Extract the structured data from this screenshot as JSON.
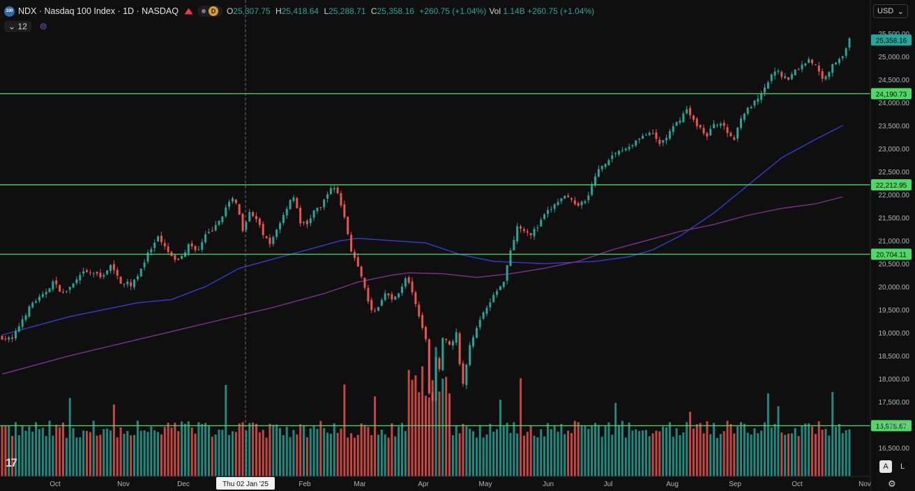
{
  "header": {
    "symbol_logo": "100",
    "title": "NDX · Nasdaq 100 Index · 1D · NASDAQ",
    "d_badge": "D",
    "ohlc": {
      "o_label": "O",
      "o": "25,307.75",
      "h_label": "H",
      "h": "25,418.64",
      "l_label": "L",
      "l": "25,288.71",
      "c_label": "C",
      "c": "25,358.16",
      "change": "+260.75 (+1.04%)"
    },
    "vol": {
      "label": "Vol",
      "value": "1.14B",
      "change": "+260.75 (+1.04%)"
    },
    "indicators_count": "12",
    "currency": "USD"
  },
  "colors": {
    "up": "#26a69a",
    "down": "#ef5350",
    "level": "#4cd964",
    "ma_fast": "#2f3cc4",
    "ma_slow": "#7a2d8e",
    "volume_up": "#26a69a",
    "volume_down": "#ef5350"
  },
  "crosshair": {
    "date": "Thu 02 Jan '25"
  },
  "controls": {
    "auto": "A",
    "log": "L"
  },
  "chart_data": {
    "type": "candlestick",
    "x_labels": [
      "Oct",
      "Nov",
      "Dec",
      "Jan",
      "Feb",
      "Mar",
      "Apr",
      "May",
      "Jun",
      "Jul",
      "Aug",
      "Sep",
      "Oct",
      "Nov"
    ],
    "y_ticks": [
      25500,
      25000,
      24500,
      24000,
      23500,
      23000,
      22500,
      22000,
      21500,
      21000,
      20500,
      20000,
      19500,
      19000,
      18500,
      18000,
      17500,
      17000,
      16500
    ],
    "ylim": [
      16500,
      25500
    ],
    "last_price": "25,358.16",
    "levels": [
      {
        "value": 24190.73,
        "label": "24,190.73"
      },
      {
        "value": 22212.95,
        "label": "22,212.95"
      },
      {
        "value": 20704.11,
        "label": "20,704.11"
      },
      {
        "value": 16978.67,
        "label": "16,978.67"
      }
    ],
    "close_path": [
      [
        0,
        18900
      ],
      [
        3,
        18850
      ],
      [
        6,
        19300
      ],
      [
        9,
        19650
      ],
      [
        12,
        19800
      ],
      [
        15,
        20100
      ],
      [
        18,
        19850
      ],
      [
        21,
        20050
      ],
      [
        24,
        20300
      ],
      [
        27,
        20300
      ],
      [
        29,
        20200
      ],
      [
        32,
        20450
      ],
      [
        35,
        20100
      ],
      [
        38,
        20050
      ],
      [
        40,
        20250
      ],
      [
        43,
        20700
      ],
      [
        46,
        21050
      ],
      [
        48,
        20850
      ],
      [
        51,
        20550
      ],
      [
        53,
        20650
      ],
      [
        55,
        20900
      ],
      [
        58,
        20800
      ],
      [
        60,
        21100
      ],
      [
        63,
        21300
      ],
      [
        66,
        21700
      ],
      [
        68,
        21900
      ],
      [
        69,
        21850
      ],
      [
        71,
        21250
      ],
      [
        73,
        21650
      ],
      [
        75,
        21450
      ],
      [
        77,
        21150
      ],
      [
        79,
        20900
      ],
      [
        81,
        21250
      ],
      [
        83,
        21550
      ],
      [
        85,
        21900
      ],
      [
        86,
        21950
      ],
      [
        88,
        21400
      ],
      [
        90,
        21350
      ],
      [
        92,
        21650
      ],
      [
        94,
        21700
      ],
      [
        96,
        22050
      ],
      [
        98,
        22150
      ],
      [
        99,
        22050
      ],
      [
        101,
        21500
      ],
      [
        103,
        20800
      ],
      [
        105,
        20400
      ],
      [
        107,
        19950
      ],
      [
        109,
        19450
      ],
      [
        111,
        19550
      ],
      [
        113,
        19900
      ],
      [
        115,
        19700
      ],
      [
        117,
        19850
      ],
      [
        119,
        20200
      ],
      [
        121,
        19900
      ],
      [
        123,
        19400
      ],
      [
        125,
        18900
      ],
      [
        126,
        17700
      ],
      [
        127,
        17500
      ],
      [
        128,
        18500
      ],
      [
        129,
        18200
      ],
      [
        130,
        18900
      ],
      [
        132,
        18700
      ],
      [
        134,
        19000
      ],
      [
        135,
        18300
      ],
      [
        136,
        17900
      ],
      [
        138,
        18700
      ],
      [
        140,
        19100
      ],
      [
        142,
        19450
      ],
      [
        144,
        19700
      ],
      [
        146,
        19900
      ],
      [
        148,
        20150
      ],
      [
        150,
        20800
      ],
      [
        152,
        21300
      ],
      [
        154,
        21250
      ],
      [
        156,
        21150
      ],
      [
        158,
        21300
      ],
      [
        160,
        21550
      ],
      [
        162,
        21700
      ],
      [
        164,
        21850
      ],
      [
        166,
        21950
      ],
      [
        168,
        21850
      ],
      [
        170,
        21800
      ],
      [
        172,
        21850
      ],
      [
        174,
        22200
      ],
      [
        176,
        22550
      ],
      [
        178,
        22700
      ],
      [
        180,
        22850
      ],
      [
        182,
        22950
      ],
      [
        184,
        23000
      ],
      [
        186,
        23100
      ],
      [
        188,
        23250
      ],
      [
        190,
        23300
      ],
      [
        192,
        23300
      ],
      [
        194,
        23100
      ],
      [
        196,
        23250
      ],
      [
        198,
        23450
      ],
      [
        200,
        23650
      ],
      [
        202,
        23850
      ],
      [
        204,
        23600
      ],
      [
        206,
        23450
      ],
      [
        208,
        23250
      ],
      [
        210,
        23550
      ],
      [
        212,
        23550
      ],
      [
        214,
        23350
      ],
      [
        216,
        23200
      ],
      [
        218,
        23700
      ],
      [
        220,
        23850
      ],
      [
        222,
        24000
      ],
      [
        224,
        24150
      ],
      [
        226,
        24450
      ],
      [
        228,
        24700
      ],
      [
        230,
        24600
      ],
      [
        232,
        24500
      ],
      [
        234,
        24700
      ],
      [
        236,
        24800
      ],
      [
        238,
        24950
      ],
      [
        240,
        24800
      ],
      [
        242,
        24500
      ],
      [
        244,
        24700
      ],
      [
        246,
        24900
      ],
      [
        248,
        25050
      ],
      [
        249,
        25150
      ],
      [
        250,
        25358
      ]
    ],
    "ma_fast": [
      [
        0,
        18950
      ],
      [
        20,
        19350
      ],
      [
        40,
        19650
      ],
      [
        50,
        19720
      ],
      [
        60,
        20000
      ],
      [
        70,
        20400
      ],
      [
        85,
        20700
      ],
      [
        100,
        21000
      ],
      [
        105,
        21050
      ],
      [
        115,
        21000
      ],
      [
        125,
        20950
      ],
      [
        135,
        20700
      ],
      [
        145,
        20550
      ],
      [
        160,
        20500
      ],
      [
        175,
        20550
      ],
      [
        185,
        20650
      ],
      [
        192,
        20800
      ],
      [
        200,
        21100
      ],
      [
        210,
        21600
      ],
      [
        220,
        22200
      ],
      [
        230,
        22800
      ],
      [
        240,
        23200
      ],
      [
        248,
        23500
      ]
    ],
    "ma_slow": [
      [
        0,
        18100
      ],
      [
        20,
        18500
      ],
      [
        40,
        18850
      ],
      [
        60,
        19200
      ],
      [
        80,
        19550
      ],
      [
        95,
        19850
      ],
      [
        105,
        20100
      ],
      [
        115,
        20250
      ],
      [
        120,
        20300
      ],
      [
        130,
        20280
      ],
      [
        140,
        20200
      ],
      [
        150,
        20280
      ],
      [
        160,
        20400
      ],
      [
        170,
        20550
      ],
      [
        180,
        20800
      ],
      [
        190,
        21000
      ],
      [
        200,
        21200
      ],
      [
        210,
        21350
      ],
      [
        220,
        21550
      ],
      [
        230,
        21700
      ],
      [
        240,
        21800
      ],
      [
        248,
        21950
      ]
    ]
  }
}
